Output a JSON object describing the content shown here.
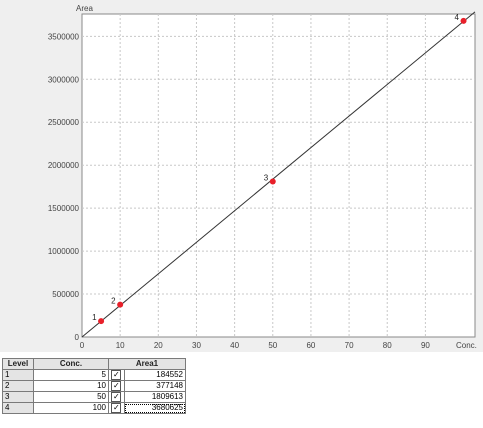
{
  "calibration_chart": {
    "y_axis_title": "Area",
    "x_axis_title": "Conc."
  },
  "chart_data": {
    "type": "scatter",
    "title": "",
    "xlabel": "Conc.",
    "ylabel": "Area",
    "xlim": [
      0,
      103
    ],
    "ylim": [
      0,
      3760000
    ],
    "x_ticks": [
      0,
      10,
      20,
      30,
      40,
      50,
      60,
      70,
      80,
      90
    ],
    "x_tick_labels": [
      "0",
      "10",
      "20",
      "30",
      "40",
      "50",
      "60",
      "70",
      "80",
      "90"
    ],
    "y_ticks": [
      0,
      500000,
      1000000,
      1500000,
      2000000,
      2500000,
      3000000,
      3500000
    ],
    "y_tick_labels": [
      "0",
      "500000",
      "1000000",
      "1500000",
      "2000000",
      "2500000",
      "3000000",
      "3500000"
    ],
    "grid": true,
    "series": [
      {
        "points": [
          {
            "label": "1",
            "x": 5,
            "y": 184552
          },
          {
            "label": "2",
            "x": 10,
            "y": 377148
          },
          {
            "label": "3",
            "x": 50,
            "y": 1809613
          },
          {
            "label": "4",
            "x": 100,
            "y": 3680625
          }
        ],
        "color": "#e8202a"
      }
    ],
    "fit_line": {
      "x": [
        0,
        103
      ],
      "y": [
        0,
        3785000
      ],
      "color": "#333333"
    }
  },
  "table": {
    "headers": {
      "level": "Level",
      "conc": "Conc.",
      "area": "Area1"
    },
    "rows": [
      {
        "level": "1",
        "conc": "5",
        "checked": "✓",
        "area": "184552"
      },
      {
        "level": "2",
        "conc": "10",
        "checked": "✓",
        "area": "377148"
      },
      {
        "level": "3",
        "conc": "50",
        "checked": "✓",
        "area": "1809613"
      },
      {
        "level": "4",
        "conc": "100",
        "checked": "✓",
        "area": "3680625"
      }
    ]
  }
}
